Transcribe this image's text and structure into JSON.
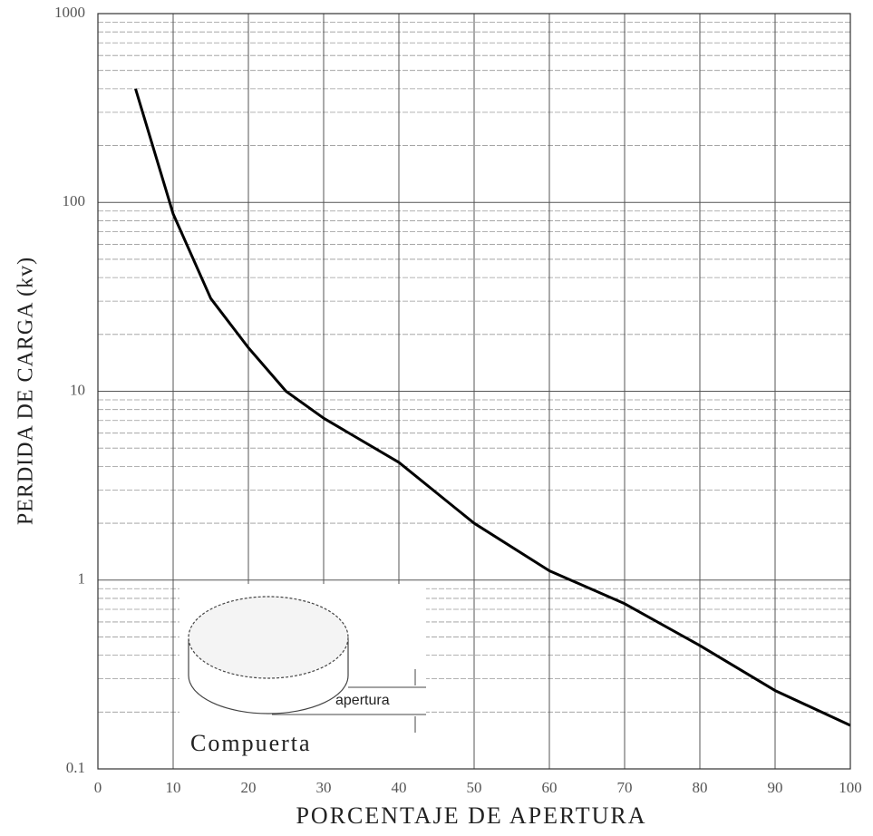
{
  "chart_data": {
    "type": "line",
    "x_label": "PORCENTAJE DE APERTURA",
    "y_label": "PERDIDA DE CARGA (kv)",
    "x": [
      5,
      10,
      15,
      20,
      25,
      30,
      40,
      50,
      60,
      70,
      80,
      90,
      100
    ],
    "series": [
      {
        "color": "#000000",
        "values": [
          400,
          87,
          31,
          17,
          10,
          7.2,
          4.2,
          2.0,
          1.12,
          0.75,
          0.45,
          0.26,
          0.17
        ]
      }
    ],
    "xlim": [
      0,
      100
    ],
    "xticks": [
      0,
      10,
      20,
      30,
      40,
      50,
      60,
      70,
      80,
      90,
      100
    ],
    "ylim": [
      0.1,
      1000
    ],
    "yticks": [
      0.1,
      1,
      10,
      100,
      1000
    ],
    "log_y": true,
    "grid": true,
    "minor_grid": true,
    "annotations": [
      "Compuerta",
      "apertura"
    ]
  }
}
